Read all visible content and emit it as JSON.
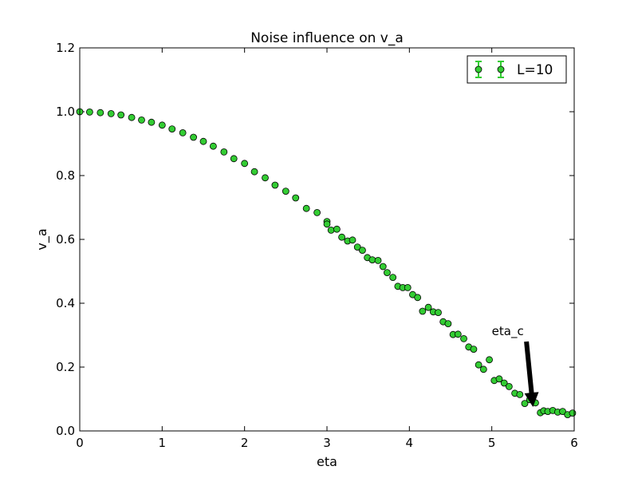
{
  "chart_data": {
    "type": "scatter",
    "title": "Noise influence on v_a",
    "xlabel": "eta",
    "ylabel": "v_a",
    "xlim": [
      0,
      6
    ],
    "ylim": [
      0,
      1.2
    ],
    "xticks": [
      "0",
      "1",
      "2",
      "3",
      "4",
      "5",
      "6"
    ],
    "yticks": [
      "0.0",
      "0.2",
      "0.4",
      "0.6",
      "0.8",
      "1.0",
      "1.2"
    ],
    "grid": false,
    "legend_position": "top-right",
    "series": [
      {
        "name": "L=10",
        "color": "#33cc33",
        "marker": "circle",
        "error_bars": true,
        "points": [
          [
            0.0,
            1.0
          ],
          [
            0.12,
            0.999
          ],
          [
            0.25,
            0.997
          ],
          [
            0.38,
            0.994
          ],
          [
            0.5,
            0.99
          ],
          [
            0.63,
            0.982
          ],
          [
            0.75,
            0.974
          ],
          [
            0.87,
            0.967
          ],
          [
            1.0,
            0.958
          ],
          [
            1.12,
            0.946
          ],
          [
            1.25,
            0.934
          ],
          [
            1.38,
            0.92
          ],
          [
            1.5,
            0.907
          ],
          [
            1.62,
            0.892
          ],
          [
            1.75,
            0.874
          ],
          [
            1.87,
            0.853
          ],
          [
            2.0,
            0.838
          ],
          [
            2.12,
            0.812
          ],
          [
            2.25,
            0.793
          ],
          [
            2.37,
            0.77
          ],
          [
            2.5,
            0.751
          ],
          [
            2.62,
            0.73
          ],
          [
            2.75,
            0.697
          ],
          [
            2.88,
            0.684
          ],
          [
            3.0,
            0.656
          ],
          [
            3.0,
            0.648
          ],
          [
            3.05,
            0.629
          ],
          [
            3.12,
            0.632
          ],
          [
            3.18,
            0.607
          ],
          [
            3.25,
            0.595
          ],
          [
            3.31,
            0.598
          ],
          [
            3.37,
            0.576
          ],
          [
            3.43,
            0.566
          ],
          [
            3.49,
            0.543
          ],
          [
            3.55,
            0.536
          ],
          [
            3.62,
            0.534
          ],
          [
            3.68,
            0.515
          ],
          [
            3.73,
            0.496
          ],
          [
            3.8,
            0.481
          ],
          [
            3.86,
            0.453
          ],
          [
            3.92,
            0.449
          ],
          [
            3.98,
            0.449
          ],
          [
            4.04,
            0.427
          ],
          [
            4.1,
            0.418
          ],
          [
            4.16,
            0.375
          ],
          [
            4.23,
            0.387
          ],
          [
            4.29,
            0.373
          ],
          [
            4.35,
            0.371
          ],
          [
            4.41,
            0.342
          ],
          [
            4.47,
            0.336
          ],
          [
            4.53,
            0.302
          ],
          [
            4.59,
            0.303
          ],
          [
            4.66,
            0.289
          ],
          [
            4.72,
            0.263
          ],
          [
            4.78,
            0.256
          ],
          [
            4.84,
            0.207
          ],
          [
            4.9,
            0.193
          ],
          [
            4.97,
            0.223
          ],
          [
            5.03,
            0.158
          ],
          [
            5.09,
            0.163
          ],
          [
            5.15,
            0.15
          ],
          [
            5.21,
            0.139
          ],
          [
            5.28,
            0.118
          ],
          [
            5.34,
            0.114
          ],
          [
            5.4,
            0.086
          ],
          [
            5.46,
            0.098
          ],
          [
            5.53,
            0.088
          ],
          [
            5.59,
            0.057
          ],
          [
            5.63,
            0.063
          ],
          [
            5.68,
            0.061
          ],
          [
            5.74,
            0.064
          ],
          [
            5.8,
            0.059
          ],
          [
            5.86,
            0.061
          ],
          [
            5.92,
            0.051
          ],
          [
            5.98,
            0.056
          ]
        ]
      }
    ],
    "annotations": [
      {
        "text": "eta_c",
        "text_at": [
          5.0,
          0.3
        ],
        "arrow_from": [
          5.42,
          0.28
        ],
        "arrow_to": [
          5.5,
          0.075
        ]
      }
    ]
  }
}
